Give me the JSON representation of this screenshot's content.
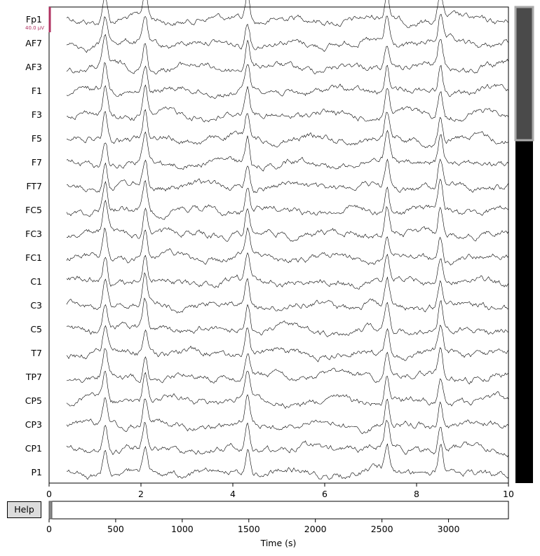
{
  "channels": [
    "Fp1",
    "AF7",
    "AF3",
    "F1",
    "F3",
    "F5",
    "F7",
    "FT7",
    "FC5",
    "FC3",
    "FC1",
    "C1",
    "C3",
    "C5",
    "T7",
    "TP7",
    "CP5",
    "CP3",
    "CP1",
    "P1"
  ],
  "scale_bar_label": "40.0 µV",
  "main_x_ticks": [
    "0",
    "2",
    "4",
    "6",
    "8",
    "10"
  ],
  "overview_x_ticks": [
    "0",
    "500",
    "1000",
    "1500",
    "2000",
    "2500",
    "3000"
  ],
  "x_axis_label": "Time (s)",
  "help_label": "Help",
  "colors": {
    "scale_bar": "#b03060",
    "trace": "#000000",
    "scrollbar_thumb": "#4a4a4a",
    "scrollbar_track": "#000000"
  }
}
